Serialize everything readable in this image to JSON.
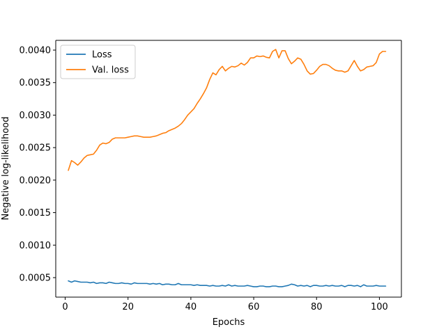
{
  "chart_data": {
    "type": "line",
    "xlabel": "Epochs",
    "ylabel": "Negative log-likelihood",
    "xlim": [
      -3,
      107
    ],
    "ylim": [
      0.0002,
      0.00415
    ],
    "x_ticks": [
      0,
      20,
      40,
      60,
      80,
      100
    ],
    "x_tick_labels": [
      "0",
      "20",
      "40",
      "60",
      "80",
      "100"
    ],
    "y_ticks": [
      0.0005,
      0.001,
      0.0015,
      0.002,
      0.0025,
      0.003,
      0.0035,
      0.004
    ],
    "y_tick_labels": [
      "0.0005",
      "0.0010",
      "0.0015",
      "0.0020",
      "0.0025",
      "0.0030",
      "0.0035",
      "0.0040"
    ],
    "grid": false,
    "legend_position": "upper-left",
    "series": [
      {
        "name": "Loss",
        "color": "#1f77b4",
        "x": [
          1,
          2,
          3,
          4,
          5,
          6,
          7,
          8,
          9,
          10,
          11,
          12,
          13,
          14,
          15,
          16,
          17,
          18,
          19,
          20,
          21,
          22,
          23,
          24,
          25,
          26,
          27,
          28,
          29,
          30,
          31,
          32,
          33,
          34,
          35,
          36,
          37,
          38,
          39,
          40,
          41,
          42,
          43,
          44,
          45,
          46,
          47,
          48,
          49,
          50,
          51,
          52,
          53,
          54,
          55,
          56,
          57,
          58,
          59,
          60,
          61,
          62,
          63,
          64,
          65,
          66,
          67,
          68,
          69,
          70,
          71,
          72,
          73,
          74,
          75,
          76,
          77,
          78,
          79,
          80,
          81,
          82,
          83,
          84,
          85,
          86,
          87,
          88,
          89,
          90,
          91,
          92,
          93,
          94,
          95,
          96,
          97,
          98,
          99,
          100,
          101,
          102
        ],
        "values": [
          0.00045,
          0.00043,
          0.00045,
          0.00044,
          0.00043,
          0.00043,
          0.00043,
          0.00042,
          0.00043,
          0.00041,
          0.00042,
          0.00042,
          0.00041,
          0.00043,
          0.00042,
          0.00041,
          0.00041,
          0.00042,
          0.00041,
          0.00041,
          0.0004,
          0.00042,
          0.00041,
          0.00041,
          0.00041,
          0.00041,
          0.0004,
          0.00041,
          0.0004,
          0.00041,
          0.00039,
          0.0004,
          0.0004,
          0.00039,
          0.00039,
          0.00041,
          0.00039,
          0.00039,
          0.00039,
          0.00039,
          0.00038,
          0.00039,
          0.00038,
          0.00038,
          0.00038,
          0.00037,
          0.00038,
          0.00037,
          0.00037,
          0.00038,
          0.00037,
          0.00039,
          0.00037,
          0.00038,
          0.00037,
          0.00037,
          0.00037,
          0.00038,
          0.00037,
          0.00036,
          0.00036,
          0.00037,
          0.00037,
          0.00036,
          0.00036,
          0.00037,
          0.00037,
          0.00036,
          0.00036,
          0.00037,
          0.00038,
          0.0004,
          0.00039,
          0.00037,
          0.00038,
          0.00037,
          0.00038,
          0.00036,
          0.00038,
          0.00038,
          0.00037,
          0.00037,
          0.00038,
          0.00037,
          0.00038,
          0.00037,
          0.00037,
          0.00038,
          0.00036,
          0.00038,
          0.00038,
          0.00037,
          0.00038,
          0.00036,
          0.00039,
          0.00037,
          0.00037,
          0.00037,
          0.00038,
          0.00037,
          0.00037,
          0.00037
        ]
      },
      {
        "name": "Val. loss",
        "color": "#ff7f0e",
        "x": [
          1,
          2,
          3,
          4,
          5,
          6,
          7,
          8,
          9,
          10,
          11,
          12,
          13,
          14,
          15,
          16,
          17,
          18,
          19,
          20,
          21,
          22,
          23,
          24,
          25,
          26,
          27,
          28,
          29,
          30,
          31,
          32,
          33,
          34,
          35,
          36,
          37,
          38,
          39,
          40,
          41,
          42,
          43,
          44,
          45,
          46,
          47,
          48,
          49,
          50,
          51,
          52,
          53,
          54,
          55,
          56,
          57,
          58,
          59,
          60,
          61,
          62,
          63,
          64,
          65,
          66,
          67,
          68,
          69,
          70,
          71,
          72,
          73,
          74,
          75,
          76,
          77,
          78,
          79,
          80,
          81,
          82,
          83,
          84,
          85,
          86,
          87,
          88,
          89,
          90,
          91,
          92,
          93,
          94,
          95,
          96,
          97,
          98,
          99,
          100,
          101,
          102
        ],
        "values": [
          0.00215,
          0.0023,
          0.00227,
          0.00223,
          0.00228,
          0.00234,
          0.00238,
          0.00239,
          0.0024,
          0.00246,
          0.00254,
          0.00257,
          0.00256,
          0.00258,
          0.00263,
          0.00265,
          0.00265,
          0.00265,
          0.00265,
          0.00266,
          0.00267,
          0.00268,
          0.00268,
          0.00267,
          0.00266,
          0.00266,
          0.00266,
          0.00267,
          0.00268,
          0.0027,
          0.00272,
          0.00273,
          0.00276,
          0.00278,
          0.0028,
          0.00283,
          0.00287,
          0.00293,
          0.003,
          0.00305,
          0.0031,
          0.00318,
          0.00325,
          0.00333,
          0.00342,
          0.00355,
          0.00365,
          0.00362,
          0.0037,
          0.00375,
          0.00368,
          0.00372,
          0.00375,
          0.00374,
          0.00376,
          0.0038,
          0.00377,
          0.00381,
          0.00388,
          0.00388,
          0.00391,
          0.0039,
          0.00391,
          0.00389,
          0.00388,
          0.00398,
          0.00401,
          0.00388,
          0.00399,
          0.00399,
          0.00387,
          0.00379,
          0.00383,
          0.00388,
          0.00386,
          0.00378,
          0.00368,
          0.00363,
          0.00364,
          0.00369,
          0.00375,
          0.00378,
          0.00378,
          0.00376,
          0.00372,
          0.00369,
          0.00368,
          0.00368,
          0.00366,
          0.00368,
          0.00376,
          0.00384,
          0.00375,
          0.00368,
          0.0037,
          0.00374,
          0.00375,
          0.00376,
          0.00381,
          0.00394,
          0.00398,
          0.00398
        ]
      }
    ]
  }
}
